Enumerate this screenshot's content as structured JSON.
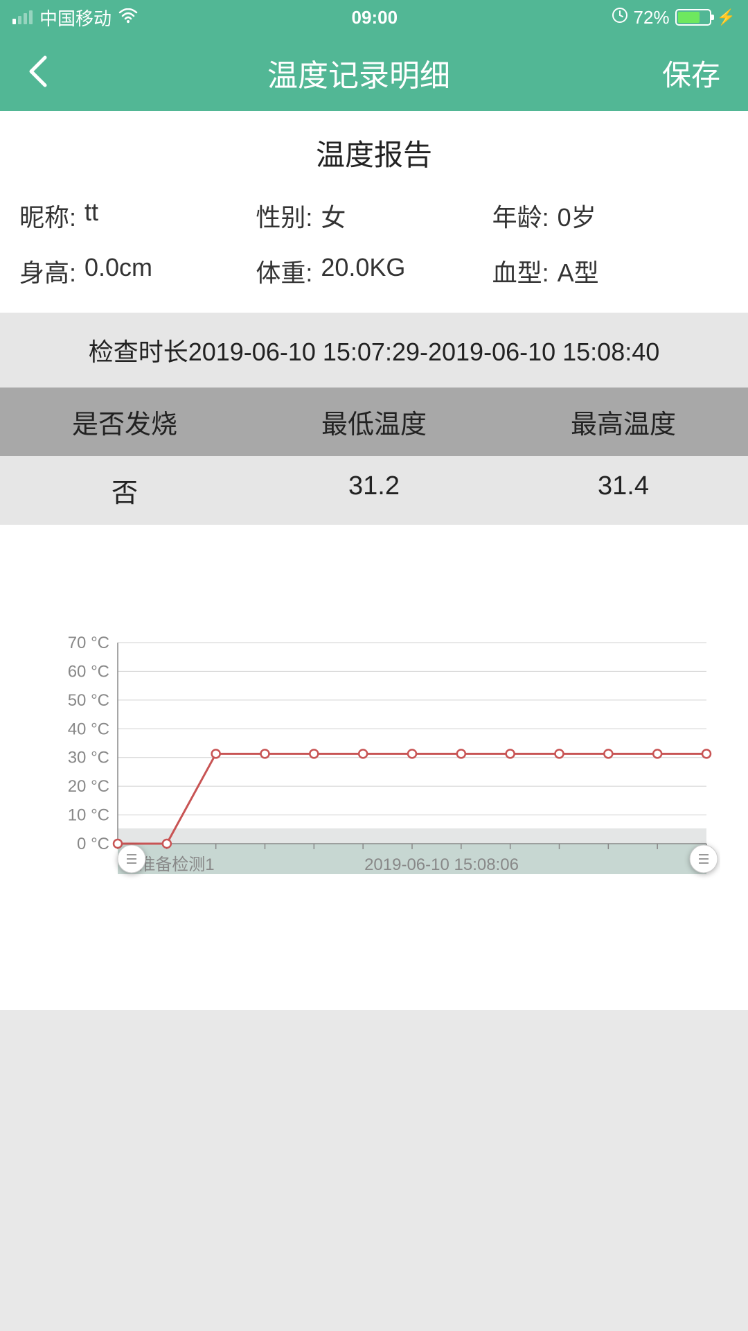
{
  "status": {
    "carrier": "中国移动",
    "time": "09:00",
    "battery_pct": "72%",
    "battery_fill_pct": 72
  },
  "nav": {
    "title": "温度记录明细",
    "save_label": "保存"
  },
  "report": {
    "title": "温度报告",
    "fields": {
      "nickname_label": "昵称:",
      "nickname_value": "tt",
      "gender_label": "性别:",
      "gender_value": "女",
      "age_label": "年龄:",
      "age_value": "0岁",
      "height_label": "身高:",
      "height_value": "0.0cm",
      "weight_label": "体重:",
      "weight_value": "20.0KG",
      "blood_label": "血型:",
      "blood_value": "A型"
    },
    "check_time": "检查时长2019-06-10 15:07:29-2019-06-10 15:08:40"
  },
  "table": {
    "headers": {
      "fever": "是否发烧",
      "min": "最低温度",
      "max": "最高温度"
    },
    "row": {
      "fever": "否",
      "min": "31.2",
      "max": "31.4"
    }
  },
  "chart": {
    "type": "line",
    "y_unit": "°C",
    "ylim": [
      0,
      70
    ],
    "ytick_step": 10,
    "y_ticks": [
      "0 °C",
      "10 °C",
      "20 °C",
      "30 °C",
      "40 °C",
      "50 °C",
      "60 °C",
      "70 °C"
    ],
    "x_labels": [
      "准备检测1",
      "2019-06-10 15:08:06"
    ],
    "data": [
      0,
      0,
      31.3,
      31.3,
      31.3,
      31.3,
      31.3,
      31.3,
      31.3,
      31.3,
      31.3,
      31.3,
      31.3
    ],
    "line_color": "#c85454",
    "marker_fill": "#ffffff",
    "marker_stroke": "#c85454",
    "grid_color": "#d0d0d0",
    "axis_color": "#888888",
    "label_color": "#888888",
    "label_fontsize": 24,
    "shade_color": "#8fb0a5",
    "shade_light_color": "#d9dcdb",
    "background": "#ffffff",
    "marker_radius": 6,
    "line_width": 3
  },
  "colors": {
    "header_bg": "#52b795",
    "page_bg": "#e8e8e8",
    "section_bg": "#e6e6e6",
    "table_header_bg": "#a8a8a8"
  }
}
